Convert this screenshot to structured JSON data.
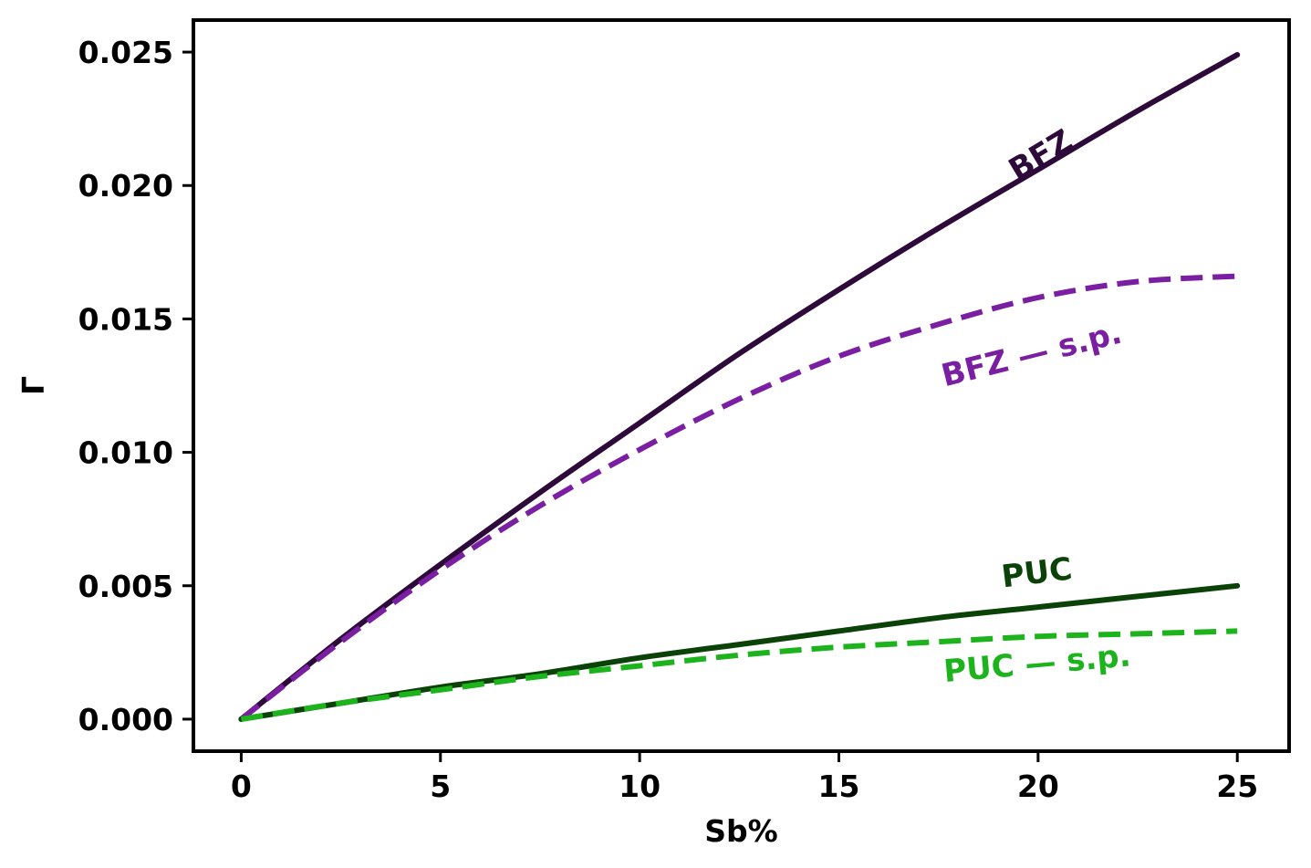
{
  "chart_data": {
    "type": "line",
    "title": "",
    "xlabel": "Sb%",
    "ylabel": "Γ",
    "xlim": [
      -1.2,
      26.3
    ],
    "ylim": [
      -0.0012,
      0.0262
    ],
    "xticks": [
      0,
      5,
      10,
      15,
      20,
      25
    ],
    "xtick_labels": [
      "0",
      "5",
      "10",
      "15",
      "20",
      "25"
    ],
    "yticks": [
      0.0,
      0.005,
      0.01,
      0.015,
      0.02,
      0.025
    ],
    "ytick_labels": [
      "0.000",
      "0.005",
      "0.010",
      "0.015",
      "0.020",
      "0.025"
    ],
    "grid": false,
    "legend": "none",
    "x": [
      0,
      2.5,
      5,
      7.5,
      10,
      12.5,
      15,
      17.5,
      20,
      22.5,
      25
    ],
    "series": [
      {
        "name": "BFZ",
        "style": "solid",
        "color": "#2d0a3a",
        "values": [
          0.0,
          0.003,
          0.0058,
          0.0085,
          0.0111,
          0.0137,
          0.0161,
          0.0184,
          0.0206,
          0.0228,
          0.0249
        ]
      },
      {
        "name": "BFZ — s.p.",
        "style": "dashed",
        "color": "#7b1fa2",
        "values": [
          0.0,
          0.0029,
          0.0056,
          0.008,
          0.0101,
          0.012,
          0.0136,
          0.0148,
          0.0158,
          0.0164,
          0.0166
        ]
      },
      {
        "name": "PUC",
        "style": "solid",
        "color": "#0b4208",
        "values": [
          0.0,
          0.0006,
          0.0012,
          0.0017,
          0.0023,
          0.0028,
          0.0033,
          0.0038,
          0.0042,
          0.0046,
          0.005
        ]
      },
      {
        "name": "PUC — s.p.",
        "style": "dashed",
        "color": "#1db31d",
        "values": [
          0.0,
          0.0006,
          0.0011,
          0.0016,
          0.002,
          0.0024,
          0.0027,
          0.0029,
          0.0031,
          0.0032,
          0.0033
        ]
      }
    ],
    "annotations": [
      {
        "text": "BFZ",
        "color": "#2d0a3a",
        "anchor_x": 20.2,
        "anchor_y": 0.0208,
        "rotate": -31
      },
      {
        "text": "BFZ — s.p.",
        "color": "#7b1fa2",
        "anchor_x": 19.9,
        "anchor_y": 0.0133,
        "rotate": -14
      },
      {
        "text": "PUC",
        "color": "#0b4208",
        "anchor_x": 20.0,
        "anchor_y": 0.0051,
        "rotate": -7
      },
      {
        "text": "PUC — s.p.",
        "color": "#1db31d",
        "anchor_x": 20.0,
        "anchor_y": 0.0017,
        "rotate": -5
      }
    ]
  }
}
